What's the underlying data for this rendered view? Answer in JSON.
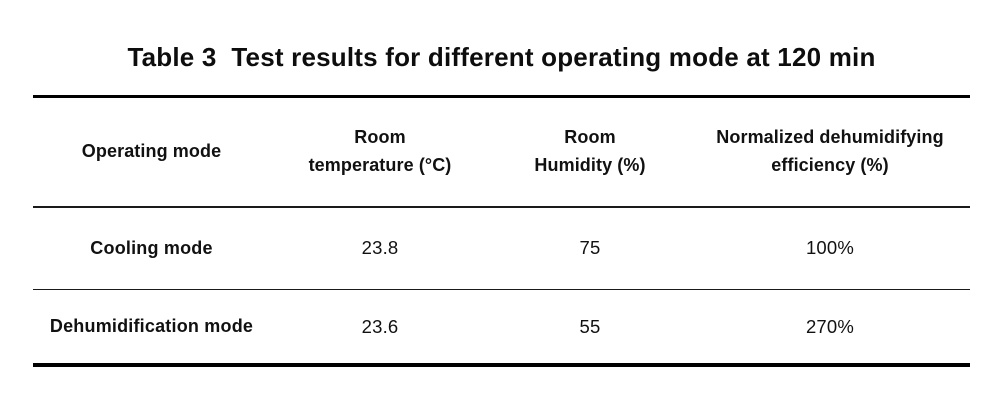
{
  "table": {
    "title": "Table 3  Test results for different operating mode at 120 min",
    "columns": [
      {
        "label": "Operating mode"
      },
      {
        "label": "Room\ntemperature (°C)"
      },
      {
        "label": "Room\nHumidity (%)"
      },
      {
        "label": "Normalized dehumidifying\nefficiency (%)"
      }
    ],
    "rows": [
      {
        "cells": [
          "Cooling mode",
          "23.8",
          "75",
          "100%"
        ]
      },
      {
        "cells": [
          "Dehumidification mode",
          "23.6",
          "55",
          "270%"
        ]
      }
    ],
    "colors": {
      "background": "#ffffff",
      "text": "#111111",
      "rule": "#000000"
    }
  }
}
